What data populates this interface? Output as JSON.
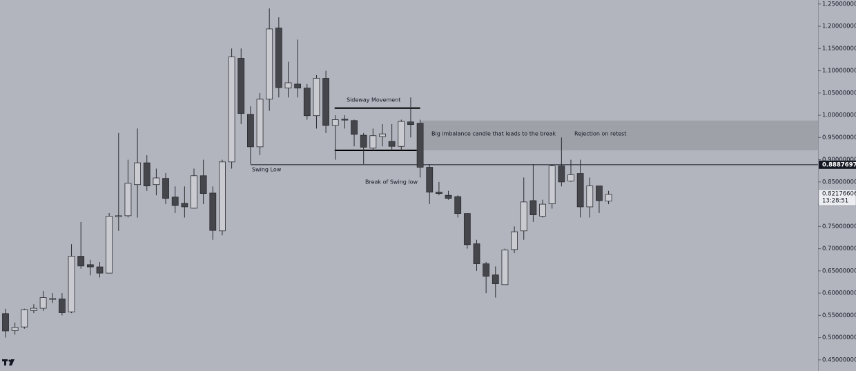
{
  "chart_data": {
    "type": "candlestick",
    "up_color": "#c9cbd1",
    "down_color": "#45464c",
    "outline_color": "#2a2b30",
    "ylim": [
      0.425,
      1.259
    ],
    "yticks": [
      {
        "value": 1.25,
        "label": "1.25000000"
      },
      {
        "value": 1.2,
        "label": "1.20000000"
      },
      {
        "value": 1.15,
        "label": "1.15000000"
      },
      {
        "value": 1.1,
        "label": "1.10000000"
      },
      {
        "value": 1.05,
        "label": "1.05000000"
      },
      {
        "value": 1.0,
        "label": "1.00000000"
      },
      {
        "value": 0.95,
        "label": "0.95000000"
      },
      {
        "value": 0.9,
        "label": "0.90000000"
      },
      {
        "value": 0.85,
        "label": "0.85000000"
      },
      {
        "value": 0.8,
        "label": "0.80000000"
      },
      {
        "value": 0.75,
        "label": "0.75000000"
      },
      {
        "value": 0.7,
        "label": "0.70000000"
      },
      {
        "value": 0.65,
        "label": "0.65000000"
      },
      {
        "value": 0.6,
        "label": "0.60000000"
      },
      {
        "value": 0.55,
        "label": "0.55000000"
      },
      {
        "value": 0.5,
        "label": "0.50000000"
      },
      {
        "value": 0.45,
        "label": "0.45000000"
      }
    ],
    "open": [
      0.554,
      0.516,
      0.524,
      0.561,
      0.566,
      0.586,
      0.587,
      0.558,
      0.683,
      0.664,
      0.659,
      0.645,
      0.772,
      0.774,
      0.844,
      0.893,
      0.844,
      0.858,
      0.816,
      0.802,
      0.791,
      0.864,
      0.825,
      0.74,
      0.895,
      1.128,
      1.002,
      0.929,
      1.036,
      1.196,
      1.061,
      1.07,
      1.061,
      0.999,
      1.083,
      0.977,
      0.991,
      0.988,
      0.955,
      0.926,
      0.952,
      0.941,
      0.93,
      0.985,
      0.982,
      0.883,
      0.827,
      0.82,
      0.817,
      0.779,
      0.711,
      0.666,
      0.641,
      0.619,
      0.698,
      0.74,
      0.808,
      0.773,
      0.801,
      0.886,
      0.852,
      0.869,
      0.794,
      0.841,
      0.807
    ],
    "high": [
      0.565,
      0.534,
      0.565,
      0.575,
      0.605,
      0.6,
      0.6,
      0.71,
      0.76,
      0.675,
      0.67,
      0.78,
      0.96,
      0.9,
      0.97,
      0.91,
      0.88,
      0.87,
      0.84,
      0.84,
      0.88,
      0.9,
      0.84,
      0.9,
      1.15,
      1.15,
      1.02,
      1.05,
      1.24,
      1.22,
      1.12,
      1.17,
      1.07,
      1.09,
      1.1,
      1.0,
      1.0,
      0.99,
      0.96,
      0.97,
      0.98,
      0.98,
      0.99,
      1.04,
      0.99,
      0.89,
      0.85,
      0.83,
      0.82,
      0.78,
      0.72,
      0.67,
      0.66,
      0.7,
      0.75,
      0.86,
      0.89,
      0.81,
      0.89,
      0.95,
      0.9,
      0.9,
      0.86,
      0.84,
      0.83
    ],
    "low": [
      0.5,
      0.507,
      0.52,
      0.555,
      0.56,
      0.578,
      0.55,
      0.555,
      0.655,
      0.64,
      0.635,
      0.645,
      0.74,
      0.77,
      0.77,
      0.83,
      0.82,
      0.8,
      0.78,
      0.77,
      0.79,
      0.8,
      0.72,
      0.73,
      0.88,
      0.98,
      0.89,
      0.91,
      1.01,
      1.04,
      1.04,
      1.04,
      0.99,
      0.97,
      0.96,
      0.9,
      0.97,
      0.93,
      0.89,
      0.92,
      0.93,
      0.92,
      0.92,
      0.95,
      0.86,
      0.8,
      0.82,
      0.81,
      0.77,
      0.7,
      0.65,
      0.6,
      0.59,
      0.62,
      0.69,
      0.72,
      0.76,
      0.77,
      0.79,
      0.84,
      0.85,
      0.77,
      0.77,
      0.78,
      0.8
    ],
    "close": [
      0.515,
      0.523,
      0.563,
      0.566,
      0.59,
      0.588,
      0.556,
      0.683,
      0.661,
      0.659,
      0.645,
      0.773,
      0.774,
      0.847,
      0.893,
      0.841,
      0.859,
      0.813,
      0.797,
      0.794,
      0.864,
      0.824,
      0.741,
      0.895,
      1.131,
      1.004,
      0.929,
      1.036,
      1.194,
      1.062,
      1.073,
      1.061,
      0.999,
      1.083,
      0.977,
      0.99,
      0.989,
      0.957,
      0.928,
      0.954,
      0.958,
      0.93,
      0.986,
      0.979,
      0.883,
      0.827,
      0.824,
      0.813,
      0.779,
      0.709,
      0.666,
      0.638,
      0.621,
      0.697,
      0.738,
      0.805,
      0.776,
      0.8,
      0.886,
      0.85,
      0.866,
      0.794,
      0.841,
      0.808,
      0.822
    ],
    "imbalance_zone": [
      0.921,
      0.988
    ],
    "sideway_range": [
      0.921,
      1.016
    ],
    "price_line": {
      "value": 0.88876972,
      "label": "0.88876972"
    },
    "current_price": {
      "value": 0.82176606,
      "label": "0.82176606",
      "countdown": "13:28:51"
    },
    "annotations": [
      "Sideway Movement",
      "Big imbalance candle that leads to the break",
      "Rejection on retest",
      "Swing Low",
      "Break of Swing low"
    ]
  }
}
